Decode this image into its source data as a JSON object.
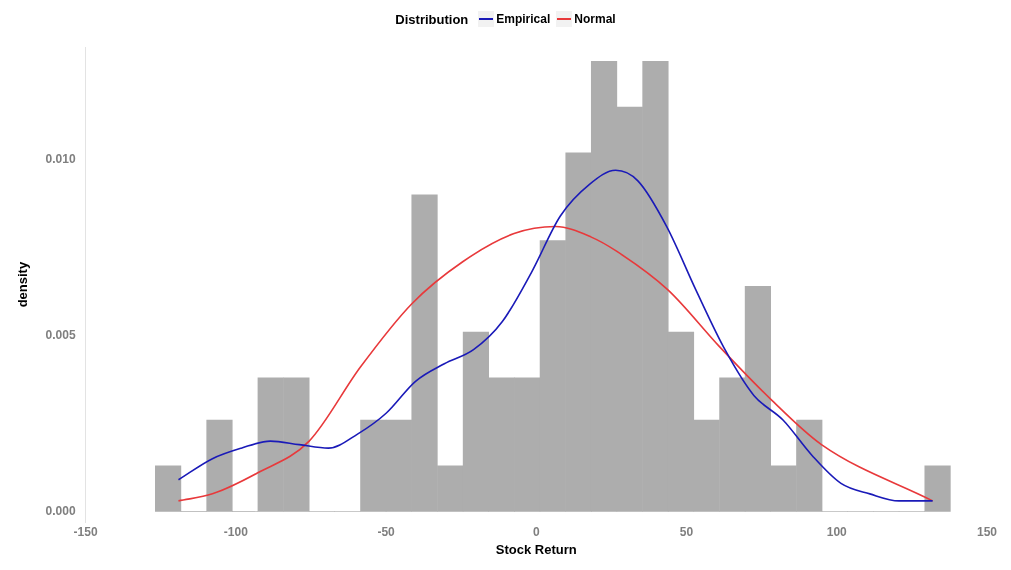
{
  "chart_data": {
    "type": "histogram",
    "xlabel": "Stock Return",
    "ylabel": "density",
    "legend_title": "Distribution",
    "legend": "top",
    "grid": false,
    "bins": [
      -126.8,
      -118.3,
      -109.7,
      -101.2,
      -92.7,
      -84.1,
      -75.6,
      -67.1,
      -58.5,
      -50.0,
      -41.5,
      -32.9,
      -24.4,
      -15.8,
      -7.3,
      1.2,
      9.8,
      18.3,
      26.8,
      35.4,
      43.9,
      52.4,
      61.0,
      69.5,
      78.0,
      86.6,
      95.1,
      103.6,
      112.2,
      120.7,
      129.3,
      137.8
    ],
    "values": [
      0.0013,
      0,
      0.0026,
      0,
      0.0038,
      0.0038,
      0,
      0,
      0.0026,
      0.0026,
      0.009,
      0.0013,
      0.0051,
      0.0038,
      0.0038,
      0.0077,
      0.0102,
      0.0128,
      0.0115,
      0.0128,
      0.0051,
      0.0026,
      0.0038,
      0.0064,
      0.0013,
      0.0026,
      0,
      0,
      0,
      0,
      0.0013
    ],
    "color": "#adadad",
    "series": [
      {
        "name": "Empirical",
        "type": "line",
        "color": "#1a1ab8",
        "x": [
          -119.1,
          -107.8,
          -98.2,
          -88.5,
          -78.9,
          -69.2,
          -59.5,
          -49.9,
          -40.2,
          -30.6,
          -20.9,
          -11.3,
          -1.6,
          8.0,
          17.7,
          26.4,
          33.8,
          43.4,
          53.1,
          62.8,
          72.4,
          82.1,
          91.7,
          101.4,
          111.0,
          120.7,
          131.9
        ],
        "values": [
          0.0009,
          0.0015,
          0.0018,
          0.002,
          0.0019,
          0.0018,
          0.0022,
          0.0028,
          0.0037,
          0.0042,
          0.0046,
          0.0054,
          0.0068,
          0.0084,
          0.0093,
          0.0097,
          0.0094,
          0.0081,
          0.0063,
          0.0046,
          0.0033,
          0.0026,
          0.0016,
          0.0008,
          0.0005,
          0.0003,
          0.0003
        ]
      },
      {
        "name": "Normal",
        "type": "line",
        "color": "#e8393b",
        "x": [
          -119.1,
          -107.8,
          -92.7,
          -75.6,
          -58.6,
          -41.5,
          -24.5,
          -7.4,
          6.4,
          18.3,
          26.7,
          43.8,
          60.8,
          77.9,
          94.9,
          131.9
        ],
        "values": [
          0.0003,
          0.0005,
          0.0011,
          0.002,
          0.0041,
          0.0059,
          0.0071,
          0.0079,
          0.0081,
          0.0078,
          0.0074,
          0.0063,
          0.0047,
          0.0032,
          0.0019,
          0.0003
        ]
      }
    ],
    "xlim": [
      -150,
      150
    ],
    "xticks": [
      -150,
      -100,
      -50,
      0,
      50,
      100,
      150
    ],
    "ylim": [
      -0.0003,
      0.0132
    ],
    "yticks": [
      {
        "value": 0,
        "label": "0.000"
      },
      {
        "value": 0.005,
        "label": "0.005"
      },
      {
        "value": 0.01,
        "label": "0.010"
      }
    ]
  }
}
